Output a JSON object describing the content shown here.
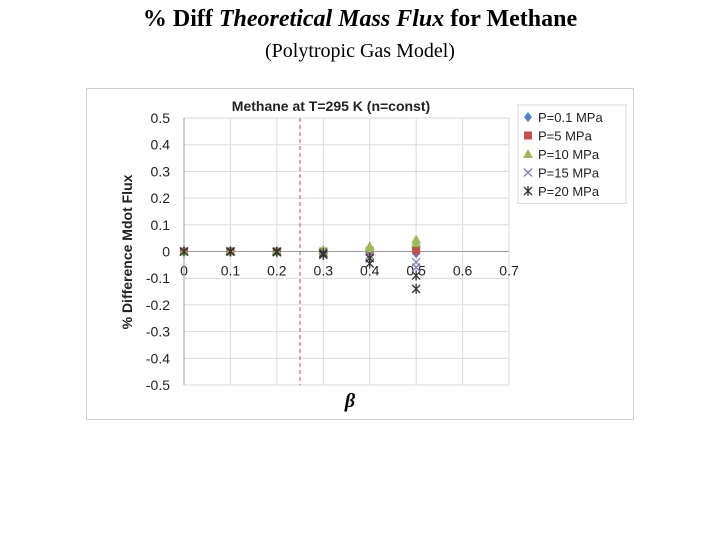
{
  "slide": {
    "title_prefix": "% Diff ",
    "title_italic": "Theoretical Mass Flux",
    "title_suffix": " for Methane",
    "subtitle": "(Polytropic Gas Model)"
  },
  "chart_data": {
    "type": "scatter",
    "title": "Methane at T=295 K (n=const)",
    "xlabel": "β",
    "ylabel": "% Difference Mdot Flux",
    "xlim": [
      0,
      0.7
    ],
    "ylim": [
      -0.5,
      0.5
    ],
    "xticks": [
      "0",
      "0.1",
      "0.2",
      "0.3",
      "0.4",
      "0.5",
      "0.6",
      "0.7"
    ],
    "yticks": [
      "0.5",
      "0.4",
      "0.3",
      "0.2",
      "0.1",
      "0",
      "-0.1",
      "-0.2",
      "-0.3",
      "-0.4",
      "-0.5"
    ],
    "grid": true,
    "legend_position": "top-right",
    "reference_line": {
      "x": 0.25,
      "color": "#c0504d",
      "style": "dashed"
    },
    "x": [
      0.0,
      0.1,
      0.1,
      0.1,
      0.2,
      0.2,
      0.3,
      0.3,
      0.4,
      0.4,
      0.5,
      0.5
    ],
    "series": [
      {
        "name": "P=0.1 MPa",
        "marker": "diamond",
        "color": "#4f81bd",
        "x": [
          0.0,
          0.1,
          0.1,
          0.1,
          0.2,
          0.2,
          0.3,
          0.3,
          0.4,
          0.4,
          0.5,
          0.5
        ],
        "values": [
          0.0,
          0.0,
          0.0,
          0.0,
          0.0,
          0.0,
          0.0,
          0.0,
          -0.001,
          -0.002,
          -0.004,
          -0.007
        ]
      },
      {
        "name": "P=5 MPa",
        "marker": "square",
        "color": "#c0504d",
        "x": [
          0.0,
          0.1,
          0.1,
          0.1,
          0.2,
          0.2,
          0.3,
          0.3,
          0.4,
          0.4,
          0.5,
          0.5
        ],
        "values": [
          0.0,
          0.0,
          0.0,
          0.0,
          0.0,
          0.0,
          0.0,
          0.0,
          0.001,
          0.002,
          0.004,
          0.007
        ]
      },
      {
        "name": "P=10 MPa",
        "marker": "triangle",
        "color": "#9bbb59",
        "x": [
          0.0,
          0.1,
          0.1,
          0.1,
          0.2,
          0.2,
          0.3,
          0.3,
          0.4,
          0.4,
          0.5,
          0.5
        ],
        "values": [
          0.0,
          0.0,
          0.0,
          0.0,
          0.0,
          0.002,
          0.004,
          0.007,
          0.012,
          0.02,
          0.032,
          0.045
        ]
      },
      {
        "name": "P=15 MPa",
        "marker": "x",
        "color": "#7f7fbf",
        "x": [
          0.0,
          0.1,
          0.1,
          0.1,
          0.2,
          0.2,
          0.3,
          0.3,
          0.4,
          0.4,
          0.5,
          0.5
        ],
        "values": [
          0.0,
          0.0,
          0.0,
          0.0,
          0.0,
          -0.002,
          -0.004,
          -0.008,
          -0.014,
          -0.025,
          -0.04,
          -0.06
        ]
      },
      {
        "name": "P=20 MPa",
        "marker": "star",
        "color": "#333333",
        "x": [
          0.0,
          0.1,
          0.1,
          0.1,
          0.2,
          0.2,
          0.3,
          0.3,
          0.4,
          0.4,
          0.5,
          0.5
        ],
        "values": [
          0.0,
          0.0,
          0.0,
          0.0,
          0.0,
          -0.003,
          -0.007,
          -0.013,
          -0.025,
          -0.045,
          -0.09,
          -0.14
        ]
      }
    ]
  }
}
